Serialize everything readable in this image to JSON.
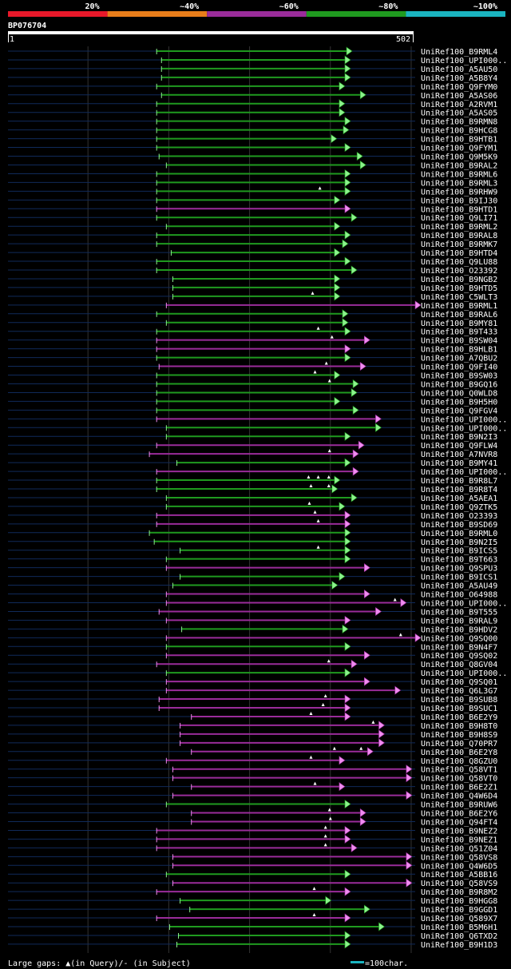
{
  "query_id": "BP076704",
  "scale_start": "1",
  "scale_end": "502",
  "query_length": 502,
  "color_legend": [
    {
      "label": "20%",
      "color": "#e8182a"
    },
    {
      "label": "~40%",
      "color": "#e87d1a"
    },
    {
      "label": "~60%",
      "color": "#9a2c9a"
    },
    {
      "label": "~80%",
      "color": "#1f9a1f"
    },
    {
      "label": "~100%",
      "color": "#1ab4c0"
    }
  ],
  "footer": {
    "gaps_text": "Large gaps: ▲(in Query)/- (in Subject)",
    "scale_text": "=100char."
  },
  "hits": [
    {
      "name": "UniRef100_B9RML4",
      "s": 185,
      "e": 420,
      "c": "g"
    },
    {
      "name": "UniRef100_UPI000..",
      "s": 191,
      "e": 418,
      "c": "g"
    },
    {
      "name": "UniRef100_A5AU50",
      "s": 191,
      "e": 418,
      "c": "g"
    },
    {
      "name": "UniRef100_A5B8Y4",
      "s": 191,
      "e": 418,
      "c": "g"
    },
    {
      "name": "UniRef100_Q9FYM0",
      "s": 185,
      "e": 411,
      "c": "g"
    },
    {
      "name": "UniRef100_A5AS06",
      "s": 191,
      "e": 437,
      "c": "g"
    },
    {
      "name": "UniRef100_A2RVM1",
      "s": 185,
      "e": 411,
      "c": "g"
    },
    {
      "name": "UniRef100_A5AS05",
      "s": 185,
      "e": 411,
      "c": "g"
    },
    {
      "name": "UniRef100_B9RMN8",
      "s": 185,
      "e": 418,
      "c": "g"
    },
    {
      "name": "UniRef100_B9HCG8",
      "s": 185,
      "e": 416,
      "c": "g"
    },
    {
      "name": "UniRef100_B9HTB1",
      "s": 185,
      "e": 401,
      "c": "g"
    },
    {
      "name": "UniRef100_Q9FYM1",
      "s": 185,
      "e": 418,
      "c": "g"
    },
    {
      "name": "UniRef100_Q9M5K9",
      "s": 188,
      "e": 433,
      "c": "g"
    },
    {
      "name": "UniRef100_B9RAL2",
      "s": 197,
      "e": 437,
      "c": "g"
    },
    {
      "name": "UniRef100_B9RML6",
      "s": 185,
      "e": 418,
      "c": "g"
    },
    {
      "name": "UniRef100_B9RML3",
      "s": 185,
      "e": 418,
      "c": "g"
    },
    {
      "name": "UniRef100_B9RHW9",
      "s": 185,
      "e": 418,
      "c": "g",
      "gaps": [
        387
      ]
    },
    {
      "name": "UniRef100_B9IJ30",
      "s": 185,
      "e": 405,
      "c": "g"
    },
    {
      "name": "UniRef100_B9HTD1",
      "s": 185,
      "e": 418,
      "c": "p"
    },
    {
      "name": "UniRef100_Q9LI71",
      "s": 185,
      "e": 426,
      "c": "g"
    },
    {
      "name": "UniRef100_B9RML2",
      "s": 197,
      "e": 405,
      "c": "g"
    },
    {
      "name": "UniRef100_B9RAL8",
      "s": 185,
      "e": 418,
      "c": "g"
    },
    {
      "name": "UniRef100_B9RMK7",
      "s": 185,
      "e": 415,
      "c": "g"
    },
    {
      "name": "UniRef100_B9HTD4",
      "s": 203,
      "e": 405,
      "c": "g"
    },
    {
      "name": "UniRef100_Q9LU88",
      "s": 185,
      "e": 418,
      "c": "g"
    },
    {
      "name": "UniRef100_O23392",
      "s": 185,
      "e": 426,
      "c": "g"
    },
    {
      "name": "UniRef100_B9NGB2",
      "s": 205,
      "e": 405,
      "c": "g"
    },
    {
      "name": "UniRef100_B9HTD5",
      "s": 205,
      "e": 405,
      "c": "g"
    },
    {
      "name": "UniRef100_C5WLT3",
      "s": 205,
      "e": 405,
      "c": "g",
      "gaps": [
        378
      ]
    },
    {
      "name": "UniRef100_B9RML1",
      "s": 197,
      "e": 505,
      "c": "p"
    },
    {
      "name": "UniRef100_B9RAL6",
      "s": 185,
      "e": 415,
      "c": "g"
    },
    {
      "name": "UniRef100_B9MY81",
      "s": 197,
      "e": 415,
      "c": "g"
    },
    {
      "name": "UniRef100_B9T433",
      "s": 185,
      "e": 418,
      "c": "g",
      "gaps": [
        385
      ]
    },
    {
      "name": "UniRef100_B9SW04",
      "s": 185,
      "e": 442,
      "c": "p",
      "gaps": [
        402
      ]
    },
    {
      "name": "UniRef100_B9HLB1",
      "s": 185,
      "e": 418,
      "c": "p"
    },
    {
      "name": "UniRef100_A7QBU2",
      "s": 185,
      "e": 418,
      "c": "g"
    },
    {
      "name": "UniRef100_Q9FI40",
      "s": 188,
      "e": 437,
      "c": "p",
      "gaps": [
        395
      ]
    },
    {
      "name": "UniRef100_B9SW03",
      "s": 185,
      "e": 405,
      "c": "g",
      "gaps": [
        381
      ]
    },
    {
      "name": "UniRef100_B9GQ16",
      "s": 185,
      "e": 428,
      "c": "g",
      "gaps": [
        399
      ]
    },
    {
      "name": "UniRef100_Q0WLD8",
      "s": 185,
      "e": 426,
      "c": "g"
    },
    {
      "name": "UniRef100_B9H5H0",
      "s": 185,
      "e": 405,
      "c": "g"
    },
    {
      "name": "UniRef100_Q9FGV4",
      "s": 185,
      "e": 428,
      "c": "g"
    },
    {
      "name": "UniRef100_UPI000..",
      "s": 185,
      "e": 456,
      "c": "p"
    },
    {
      "name": "UniRef100_UPI000..",
      "s": 197,
      "e": 456,
      "c": "g"
    },
    {
      "name": "UniRef100_B9N2I3",
      "s": 197,
      "e": 418,
      "c": "g"
    },
    {
      "name": "UniRef100_Q9FLW4",
      "s": 185,
      "e": 435,
      "c": "p"
    },
    {
      "name": "UniRef100_A7NVR8",
      "s": 176,
      "e": 428,
      "c": "p",
      "gaps": [
        399
      ]
    },
    {
      "name": "UniRef100_B9MY41",
      "s": 210,
      "e": 418,
      "c": "g"
    },
    {
      "name": "UniRef100_UPI000..",
      "s": 185,
      "e": 428,
      "c": "p"
    },
    {
      "name": "UniRef100_B9R8L7",
      "s": 185,
      "e": 405,
      "c": "g",
      "gaps": [
        373,
        385,
        398
      ]
    },
    {
      "name": "UniRef100_B9R8T4",
      "s": 185,
      "e": 402,
      "c": "g",
      "gaps": [
        376,
        398
      ]
    },
    {
      "name": "UniRef100_A5AEA1",
      "s": 197,
      "e": 426,
      "c": "g"
    },
    {
      "name": "UniRef100_Q9ZTK5",
      "s": 197,
      "e": 411,
      "c": "g",
      "gaps": [
        374
      ]
    },
    {
      "name": "UniRef100_O23393",
      "s": 185,
      "e": 418,
      "c": "p",
      "gaps": [
        381
      ]
    },
    {
      "name": "UniRef100_B9SD69",
      "s": 185,
      "e": 418,
      "c": "p",
      "gaps": [
        385
      ]
    },
    {
      "name": "UniRef100_B9RML0",
      "s": 176,
      "e": 418,
      "c": "g"
    },
    {
      "name": "UniRef100_B9N2I5",
      "s": 182,
      "e": 418,
      "c": "g"
    },
    {
      "name": "UniRef100_B9ICS5",
      "s": 214,
      "e": 418,
      "c": "g",
      "gaps": [
        385
      ]
    },
    {
      "name": "UniRef100_B9T663",
      "s": 197,
      "e": 418,
      "c": "g"
    },
    {
      "name": "UniRef100_Q9SPU3",
      "s": 197,
      "e": 442,
      "c": "p"
    },
    {
      "name": "UniRef100_B9ICS1",
      "s": 214,
      "e": 411,
      "c": "g"
    },
    {
      "name": "UniRef100_A5AU49",
      "s": 205,
      "e": 402,
      "c": "g"
    },
    {
      "name": "UniRef100_O64988",
      "s": 197,
      "e": 442,
      "c": "p"
    },
    {
      "name": "UniRef100_UPI000..",
      "s": 197,
      "e": 487,
      "c": "p",
      "gaps": [
        480
      ]
    },
    {
      "name": "UniRef100_B9T555",
      "s": 188,
      "e": 456,
      "c": "p"
    },
    {
      "name": "UniRef100_B9RAL9",
      "s": 197,
      "e": 418,
      "c": "p"
    },
    {
      "name": "UniRef100_B9HDV2",
      "s": 216,
      "e": 415,
      "c": "g"
    },
    {
      "name": "UniRef100_Q9SQ00",
      "s": 197,
      "e": 505,
      "c": "p",
      "gaps": [
        487
      ]
    },
    {
      "name": "UniRef100_B9N4F7",
      "s": 197,
      "e": 418,
      "c": "g"
    },
    {
      "name": "UniRef100_Q9SQ02",
      "s": 197,
      "e": 442,
      "c": "p"
    },
    {
      "name": "UniRef100_Q8GV04",
      "s": 185,
      "e": 426,
      "c": "p",
      "gaps": [
        398
      ]
    },
    {
      "name": "UniRef100_UPI000..",
      "s": 197,
      "e": 418,
      "c": "g"
    },
    {
      "name": "UniRef100_Q9SQ01",
      "s": 197,
      "e": 442,
      "c": "p"
    },
    {
      "name": "UniRef100_Q6L3G7",
      "s": 197,
      "e": 480,
      "c": "p"
    },
    {
      "name": "UniRef100_B9SUB8",
      "s": 188,
      "e": 418,
      "c": "p",
      "gaps": [
        394
      ]
    },
    {
      "name": "UniRef100_B9SUC1",
      "s": 188,
      "e": 418,
      "c": "p",
      "gaps": [
        391
      ]
    },
    {
      "name": "UniRef100_B6E2Y9",
      "s": 228,
      "e": 418,
      "c": "p",
      "gaps": [
        376
      ]
    },
    {
      "name": "UniRef100_B9H8T0",
      "s": 214,
      "e": 460,
      "c": "p",
      "gaps": [
        453
      ]
    },
    {
      "name": "UniRef100_B9H8S9",
      "s": 214,
      "e": 460,
      "c": "p"
    },
    {
      "name": "UniRef100_Q70PR7",
      "s": 214,
      "e": 460,
      "c": "p"
    },
    {
      "name": "UniRef100_B6E2Y8",
      "s": 228,
      "e": 446,
      "c": "p",
      "gaps": [
        405,
        438
      ]
    },
    {
      "name": "UniRef100_Q8GZU0",
      "s": 197,
      "e": 411,
      "c": "p",
      "gaps": [
        376
      ]
    },
    {
      "name": "UniRef100_Q58VT1",
      "s": 205,
      "e": 494,
      "c": "p"
    },
    {
      "name": "UniRef100_Q58VT0",
      "s": 205,
      "e": 494,
      "c": "p"
    },
    {
      "name": "UniRef100_B6E2Z1",
      "s": 228,
      "e": 411,
      "c": "p",
      "gaps": [
        381
      ]
    },
    {
      "name": "UniRef100_Q4W6D4",
      "s": 205,
      "e": 494,
      "c": "p"
    },
    {
      "name": "UniRef100_B9RUW6",
      "s": 197,
      "e": 418,
      "c": "g"
    },
    {
      "name": "UniRef100_B6E2Y6",
      "s": 228,
      "e": 437,
      "c": "p",
      "gaps": [
        399
      ]
    },
    {
      "name": "UniRef100_Q94FT4",
      "s": 228,
      "e": 437,
      "c": "p",
      "gaps": [
        400
      ]
    },
    {
      "name": "UniRef100_B9NEZ2",
      "s": 185,
      "e": 418,
      "c": "p",
      "gaps": [
        394
      ]
    },
    {
      "name": "UniRef100_B9NEZ1",
      "s": 185,
      "e": 418,
      "c": "p",
      "gaps": [
        394
      ]
    },
    {
      "name": "UniRef100_Q51Z04",
      "s": 185,
      "e": 426,
      "c": "p",
      "gaps": [
        394
      ]
    },
    {
      "name": "UniRef100_Q58VS8",
      "s": 205,
      "e": 494,
      "c": "p"
    },
    {
      "name": "UniRef100_Q4W6D5",
      "s": 205,
      "e": 494,
      "c": "p"
    },
    {
      "name": "UniRef100_A5BB16",
      "s": 197,
      "e": 418,
      "c": "g"
    },
    {
      "name": "UniRef100_Q58VS9",
      "s": 205,
      "e": 494,
      "c": "p"
    },
    {
      "name": "UniRef100_B9R8M2",
      "s": 185,
      "e": 418,
      "c": "p",
      "gaps": [
        380
      ]
    },
    {
      "name": "UniRef100_B9HGG8",
      "s": 214,
      "e": 394,
      "c": "g"
    },
    {
      "name": "UniRef100_B9GGD1",
      "s": 226,
      "e": 442,
      "c": "g"
    },
    {
      "name": "UniRef100_Q589X7",
      "s": 185,
      "e": 418,
      "c": "p",
      "gaps": [
        380
      ]
    },
    {
      "name": "UniRef100_B5M6H1",
      "s": 201,
      "e": 460,
      "c": "g"
    },
    {
      "name": "UniRef100_Q6TXD2",
      "s": 212,
      "e": 418,
      "c": "g"
    },
    {
      "name": "UniRef100_B9H1D3",
      "s": 210,
      "e": 418,
      "c": "g"
    }
  ]
}
